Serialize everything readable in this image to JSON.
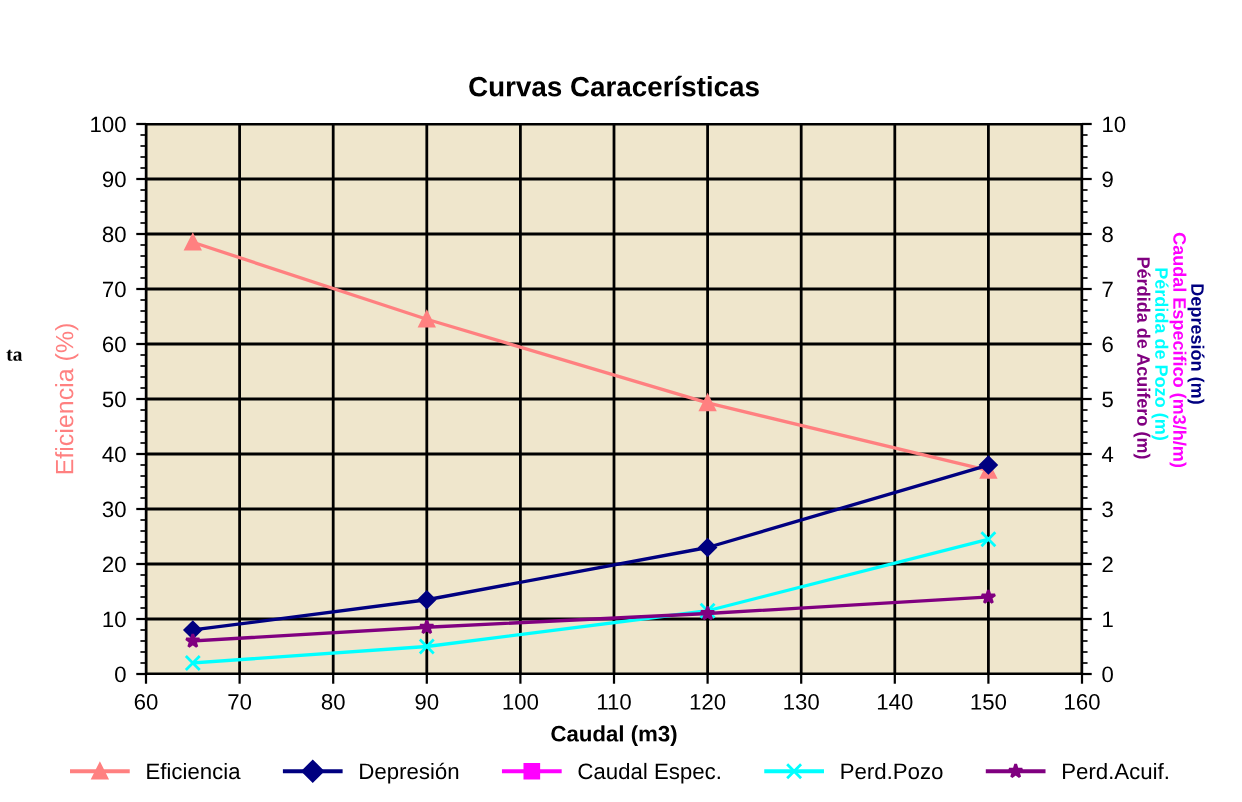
{
  "chart_data": {
    "type": "line",
    "title": "Curvas Caracerísticas",
    "xlabel": "Caudal (m3)",
    "ylabel": "Eficiencia (%)",
    "y2label": "Depresión (m)",
    "annotations": [
      "Caudal Especifico (m3/h/m)",
      "Pérdida de Pozo (m)",
      "Pérdida de Acuifero (m)",
      "ta"
    ],
    "x": [
      65,
      90,
      120,
      150
    ],
    "series": [
      {
        "name": "Eficiencia",
        "color": "#ff8080",
        "marker": "triangle",
        "values": [
          78.5,
          64.5,
          49.3,
          37
        ]
      },
      {
        "name": "Depresión",
        "color": "#000080",
        "marker": "diamond",
        "axis": "y2",
        "values": [
          0.8,
          1.35,
          2.3,
          3.8
        ]
      },
      {
        "name": "Caudal Espec.",
        "color": "#ff00ff",
        "marker": "square",
        "axis": "y2",
        "values": [
          null,
          null,
          null,
          null
        ]
      },
      {
        "name": "Perd.Pozo",
        "color": "#00ffff",
        "marker": "cross",
        "axis": "y2",
        "values": [
          0.2,
          0.5,
          1.15,
          2.45
        ]
      },
      {
        "name": "Perd.Acuif.",
        "color": "#800080",
        "marker": "star",
        "axis": "y2",
        "values": [
          0.6,
          0.85,
          1.1,
          1.4
        ]
      }
    ],
    "xlim": [
      60,
      160
    ],
    "xticks": [
      60,
      70,
      80,
      90,
      100,
      110,
      120,
      130,
      140,
      150,
      160
    ],
    "ylim": [
      0,
      100
    ],
    "yticks": [
      0,
      10,
      20,
      30,
      40,
      50,
      60,
      70,
      80,
      90,
      100
    ],
    "y2lim": [
      0,
      10
    ],
    "y2ticks": [
      0,
      1,
      2,
      3,
      4,
      5,
      6,
      7,
      8,
      9,
      10
    ],
    "grid": true,
    "legend": "bottom",
    "line_style": "solid"
  }
}
